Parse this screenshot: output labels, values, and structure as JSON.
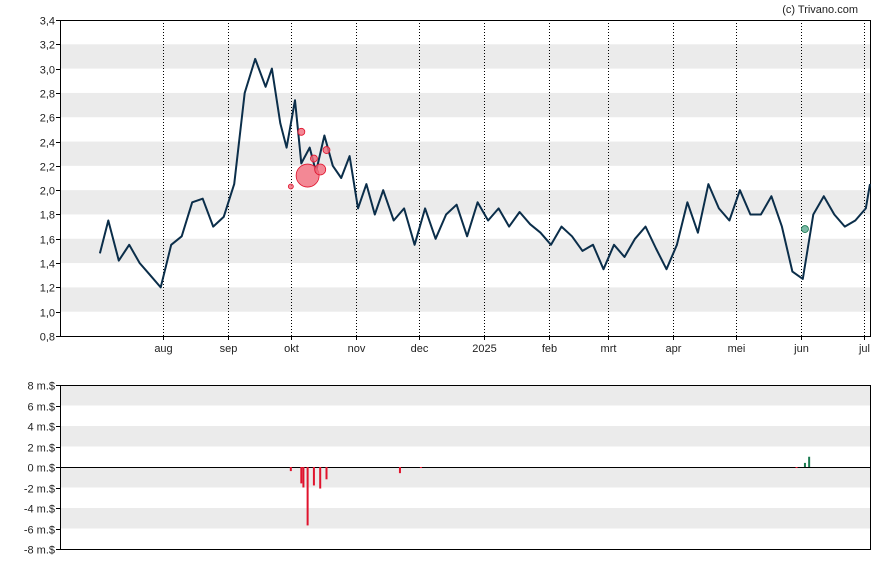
{
  "credit": "(c) Trivano.com",
  "colors": {
    "price_line": "#0b2e4a",
    "band": "#ebebeb",
    "frame": "#000000",
    "grid": "#000000",
    "insider_sell": "#e0132d",
    "insider_buy": "#1a7a50",
    "insider_marker_sell": "#f06a7a",
    "insider_marker_buy": "#5aa890"
  },
  "chart_data": [
    {
      "type": "line",
      "title": "",
      "xlabel": "",
      "ylabel": "",
      "ylim": [
        0.8,
        3.4
      ],
      "y_ticks": [
        "0,8",
        "1,0",
        "1,2",
        "1,4",
        "1,6",
        "1,8",
        "2,0",
        "2,2",
        "2,4",
        "2,6",
        "2,8",
        "3,0",
        "3,2",
        "3,4"
      ],
      "x_ticks": [
        "aug",
        "sep",
        "okt",
        "nov",
        "dec",
        "2025",
        "feb",
        "mrt",
        "apr",
        "mei",
        "jun",
        "jul"
      ],
      "grid": "vertical dotted month lines, alternating horizontal bands",
      "series": [
        {
          "x": [
            "2024-07-01",
            "2024-07-05",
            "2024-07-10",
            "2024-07-15",
            "2024-07-20",
            "2024-07-25",
            "2024-07-30",
            "2024-08-04",
            "2024-08-09",
            "2024-08-14",
            "2024-08-19",
            "2024-08-24",
            "2024-08-29",
            "2024-09-03",
            "2024-09-08",
            "2024-09-13",
            "2024-09-18",
            "2024-09-21",
            "2024-09-25",
            "2024-09-28",
            "2024-10-02",
            "2024-10-05",
            "2024-10-09",
            "2024-10-12",
            "2024-10-16",
            "2024-10-20",
            "2024-10-24",
            "2024-10-28",
            "2024-11-01",
            "2024-11-05",
            "2024-11-09",
            "2024-11-13",
            "2024-11-18",
            "2024-11-23",
            "2024-11-28",
            "2024-12-03",
            "2024-12-08",
            "2024-12-13",
            "2024-12-18",
            "2024-12-23",
            "2024-12-28",
            "2025-01-02",
            "2025-01-07",
            "2025-01-12",
            "2025-01-17",
            "2025-01-22",
            "2025-01-27",
            "2025-02-01",
            "2025-02-06",
            "2025-02-11",
            "2025-02-16",
            "2025-02-21",
            "2025-02-26",
            "2025-03-03",
            "2025-03-08",
            "2025-03-13",
            "2025-03-18",
            "2025-03-23",
            "2025-03-28",
            "2025-04-02",
            "2025-04-07",
            "2025-04-12",
            "2025-04-17",
            "2025-04-22",
            "2025-04-27",
            "2025-05-02",
            "2025-05-07",
            "2025-05-12",
            "2025-05-17",
            "2025-05-22",
            "2025-05-27",
            "2025-06-01",
            "2025-06-06",
            "2025-06-11",
            "2025-06-16",
            "2025-06-21",
            "2025-06-26",
            "2025-07-01",
            "2025-07-03"
          ],
          "y": [
            1.48,
            1.75,
            1.42,
            1.55,
            1.4,
            1.3,
            1.2,
            1.55,
            1.62,
            1.9,
            1.93,
            1.7,
            1.78,
            2.05,
            2.8,
            3.08,
            2.85,
            3.0,
            2.55,
            2.35,
            2.74,
            2.22,
            2.35,
            2.15,
            2.45,
            2.2,
            2.1,
            2.28,
            1.85,
            2.05,
            1.8,
            2.0,
            1.75,
            1.85,
            1.55,
            1.85,
            1.6,
            1.8,
            1.88,
            1.62,
            1.9,
            1.75,
            1.85,
            1.7,
            1.82,
            1.72,
            1.65,
            1.55,
            1.7,
            1.62,
            1.5,
            1.55,
            1.35,
            1.55,
            1.45,
            1.6,
            1.7,
            1.52,
            1.35,
            1.55,
            1.9,
            1.65,
            2.05,
            1.85,
            1.75,
            2.0,
            1.8,
            1.8,
            1.95,
            1.7,
            1.33,
            1.27,
            1.8,
            1.95,
            1.8,
            1.7,
            1.75,
            1.85,
            2.05
          ]
        }
      ],
      "insider_markers": [
        {
          "x": "2024-09-30",
          "y": 2.03,
          "size": 1,
          "type": "sell"
        },
        {
          "x": "2024-10-05",
          "y": 2.48,
          "size": 2,
          "type": "sell"
        },
        {
          "x": "2024-10-08",
          "y": 2.12,
          "size": 10,
          "type": "sell"
        },
        {
          "x": "2024-10-11",
          "y": 2.26,
          "size": 2,
          "type": "sell"
        },
        {
          "x": "2024-10-14",
          "y": 2.17,
          "size": 4,
          "type": "sell"
        },
        {
          "x": "2024-10-17",
          "y": 2.33,
          "size": 2,
          "type": "sell"
        },
        {
          "x": "2025-06-02",
          "y": 1.68,
          "size": 2,
          "type": "buy"
        }
      ]
    },
    {
      "type": "bar",
      "title": "",
      "xlabel": "",
      "ylabel": "",
      "ylim": [
        -8,
        8
      ],
      "y_ticks": [
        "8 m.$",
        "6 m.$",
        "4 m.$",
        "2 m.$",
        "0 m.$",
        "-2 m.$",
        "-4 m.$",
        "-6 m.$",
        "-8 m.$"
      ],
      "series": [
        {
          "name": "",
          "x": [
            "2024-09-30",
            "2024-10-05",
            "2024-10-06",
            "2024-10-08",
            "2024-10-11",
            "2024-10-14",
            "2024-10-17",
            "2024-11-21",
            "2024-12-01",
            "2025-05-29",
            "2025-06-02",
            "2025-06-04"
          ],
          "values": [
            -0.4,
            -1.6,
            -2.0,
            -5.7,
            -1.8,
            -2.1,
            -1.2,
            -0.6,
            -0.1,
            -0.1,
            0.4,
            1.0
          ]
        }
      ]
    }
  ]
}
